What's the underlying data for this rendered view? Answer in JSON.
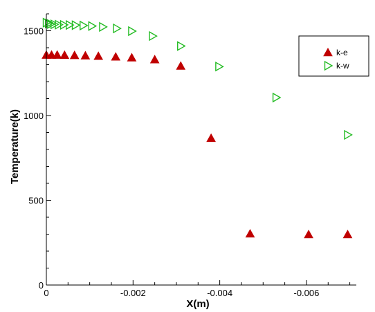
{
  "chart_data": {
    "type": "scatter",
    "xlabel": "X(m)",
    "ylabel": "Temperature(k)",
    "xlim": [
      0,
      -0.00715
    ],
    "ylim": [
      0,
      1600
    ],
    "xticks": [
      0,
      -0.002,
      -0.004,
      -0.006
    ],
    "xtick_labels": [
      "0",
      "-0.002",
      "-0.004",
      "-0.006"
    ],
    "yticks": [
      0,
      500,
      1000,
      1500
    ],
    "ytick_labels": [
      "0",
      "500",
      "1000",
      "1500"
    ],
    "grid": false,
    "legend_position": "top-right",
    "series": [
      {
        "name": "k-e",
        "marker": "filled-triangle-up",
        "color": "#c00000",
        "x": [
          0,
          -0.00012,
          -0.00025,
          -0.00042,
          -0.00065,
          -0.0009,
          -0.0012,
          -0.0016,
          -0.00197,
          -0.0025,
          -0.0031,
          -0.0038,
          -0.0047,
          -0.00605,
          -0.00695
        ],
        "y": [
          1357,
          1357,
          1357,
          1356,
          1355,
          1353,
          1350,
          1346,
          1341,
          1330,
          1292,
          866,
          302,
          298,
          298
        ]
      },
      {
        "name": "k-w",
        "marker": "open-triangle-right",
        "color": "#22bb22",
        "x": [
          0,
          -5e-05,
          -0.0001,
          -0.00018,
          -0.00028,
          -0.0004,
          -0.00053,
          -0.00067,
          -0.00085,
          -0.00105,
          -0.0013,
          -0.00162,
          -0.00197,
          -0.00245,
          -0.0031,
          -0.00398,
          -0.0053,
          -0.00695
        ],
        "y": [
          1548,
          1543,
          1540,
          1538,
          1536,
          1535,
          1534,
          1533,
          1531,
          1528,
          1523,
          1514,
          1498,
          1469,
          1410,
          1289,
          1106,
          886
        ]
      }
    ]
  }
}
